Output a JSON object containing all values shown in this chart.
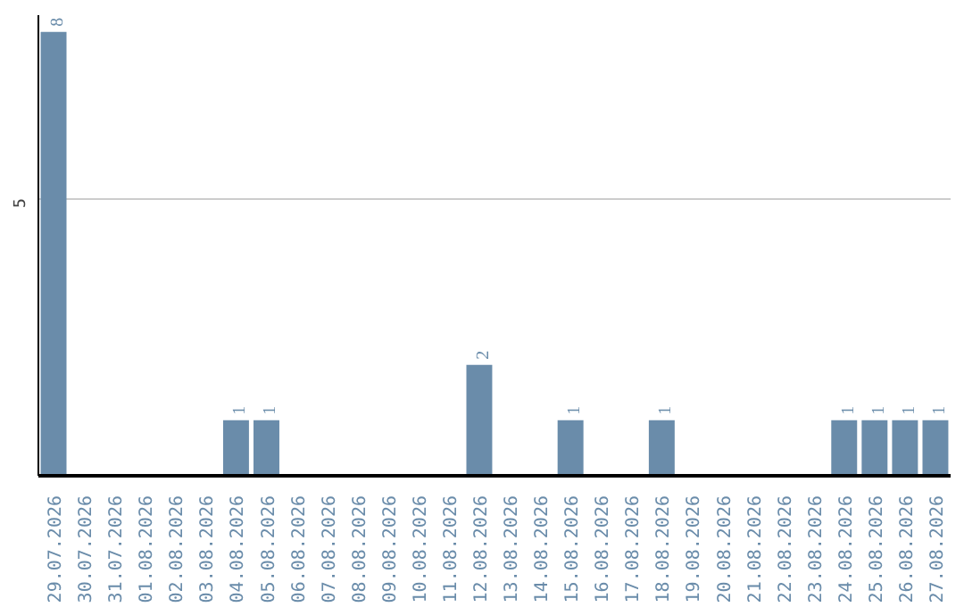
{
  "chart_data": {
    "type": "bar",
    "categories": [
      "29.07.2026",
      "30.07.2026",
      "31.07.2026",
      "01.08.2026",
      "02.08.2026",
      "03.08.2026",
      "04.08.2026",
      "05.08.2026",
      "06.08.2026",
      "07.08.2026",
      "08.08.2026",
      "09.08.2026",
      "10.08.2026",
      "11.08.2026",
      "12.08.2026",
      "13.08.2026",
      "14.08.2026",
      "15.08.2026",
      "16.08.2026",
      "17.08.2026",
      "18.08.2026",
      "19.08.2026",
      "20.08.2026",
      "21.08.2026",
      "22.08.2026",
      "23.08.2026",
      "24.08.2026",
      "25.08.2026",
      "26.08.2026",
      "27.08.2026"
    ],
    "values": [
      8,
      0,
      0,
      0,
      0,
      0,
      1,
      1,
      0,
      0,
      0,
      0,
      0,
      0,
      2,
      0,
      0,
      1,
      0,
      0,
      1,
      0,
      0,
      0,
      0,
      0,
      1,
      1,
      1,
      1
    ],
    "value_labels": [
      "8",
      null,
      null,
      null,
      null,
      null,
      "1",
      "1",
      null,
      null,
      null,
      null,
      null,
      null,
      "2",
      null,
      null,
      "1",
      null,
      null,
      "1",
      null,
      null,
      null,
      null,
      null,
      "1",
      "1",
      "1",
      "1"
    ],
    "color": "#6a8caa",
    "ylim": [
      0,
      8.3
    ],
    "yticks": [
      5
    ],
    "grid": "y"
  }
}
